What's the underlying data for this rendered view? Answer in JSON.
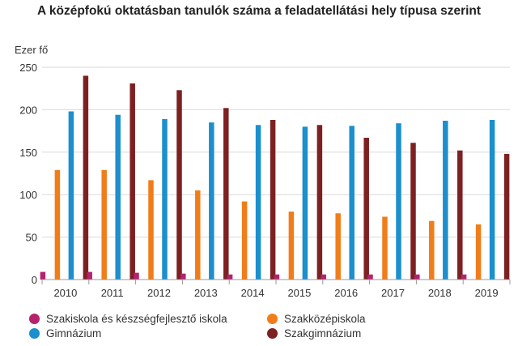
{
  "title": "A középfokú oktatásban tanulók száma a feladatellátási hely típusa szerint",
  "chart_data": {
    "type": "bar",
    "title": "A középfokú oktatásban tanulók száma a feladatellátási hely típusa szerint",
    "ylabel": "Ezer fő",
    "xlabel": "",
    "ylim": [
      0,
      250
    ],
    "yticks": [
      0,
      50,
      100,
      150,
      200,
      250
    ],
    "grid": true,
    "legend_position": "bottom",
    "categories": [
      "2010",
      "2011",
      "2012",
      "2013",
      "2014",
      "2015",
      "2016",
      "2017",
      "2018",
      "2019"
    ],
    "series": [
      {
        "name": "Szakiskola és készségfejlesztő iskola",
        "color": "#b5226e",
        "values": [
          9,
          9,
          8,
          7,
          6,
          6,
          6,
          6,
          6,
          6
        ]
      },
      {
        "name": "Szakközépiskola",
        "color": "#f07d1a",
        "values": [
          129,
          129,
          117,
          105,
          92,
          80,
          78,
          74,
          69,
          65
        ]
      },
      {
        "name": "Gimnázium",
        "color": "#1c8fcd",
        "values": [
          198,
          194,
          189,
          185,
          182,
          180,
          181,
          184,
          187,
          188
        ]
      },
      {
        "name": "Szakgimnázium",
        "color": "#7d2022",
        "values": [
          240,
          231,
          223,
          202,
          188,
          182,
          167,
          161,
          152,
          148
        ]
      }
    ]
  }
}
